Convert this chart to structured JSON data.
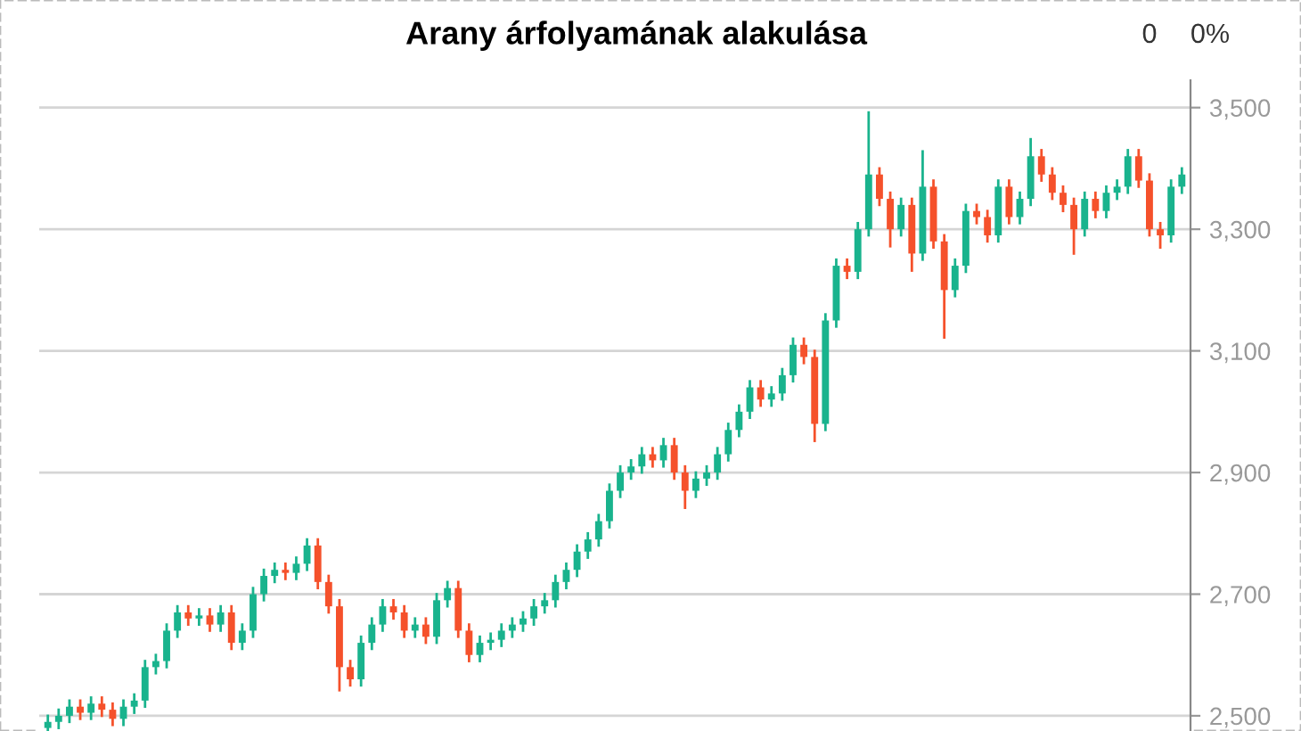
{
  "chart_data": {
    "type": "candlestick",
    "title": "Arany árfolyamának alakulása",
    "annotations": [
      "0",
      "0%"
    ],
    "categories": [
      null,
      null,
      null,
      null,
      null,
      null,
      null,
      null,
      null,
      null,
      null,
      null,
      null,
      null,
      null,
      null,
      null,
      null,
      null,
      null,
      null,
      null,
      null,
      null,
      null,
      null,
      null,
      null,
      null,
      null,
      null,
      null,
      null,
      null,
      null,
      null,
      null,
      null,
      null,
      null,
      null,
      null,
      null,
      null,
      null,
      null,
      null,
      null,
      null,
      null,
      null,
      null,
      null,
      null,
      null,
      null,
      null,
      null,
      null,
      null,
      null,
      null,
      null,
      null,
      null,
      null,
      null,
      null,
      null,
      null,
      null,
      null,
      null,
      null,
      null,
      null,
      null,
      null,
      null,
      null,
      null,
      null,
      null,
      null,
      null,
      null,
      null,
      null,
      null,
      null,
      null,
      null,
      null,
      null,
      null,
      null,
      null,
      null,
      null,
      null,
      null,
      null,
      null,
      null,
      null,
      null
    ],
    "ohlc": [
      [
        2480,
        2502,
        2468,
        2490
      ],
      [
        2490,
        2512,
        2478,
        2500
      ],
      [
        2500,
        2527,
        2488,
        2515
      ],
      [
        2515,
        2527,
        2493,
        2505
      ],
      [
        2505,
        2532,
        2493,
        2520
      ],
      [
        2520,
        2532,
        2498,
        2510
      ],
      [
        2510,
        2522,
        2483,
        2495
      ],
      [
        2495,
        2527,
        2483,
        2515
      ],
      [
        2515,
        2537,
        2503,
        2525
      ],
      [
        2525,
        2592,
        2513,
        2580
      ],
      [
        2580,
        2602,
        2568,
        2590
      ],
      [
        2590,
        2652,
        2578,
        2640
      ],
      [
        2640,
        2682,
        2628,
        2670
      ],
      [
        2670,
        2682,
        2648,
        2660
      ],
      [
        2660,
        2677,
        2648,
        2665
      ],
      [
        2665,
        2677,
        2638,
        2650
      ],
      [
        2650,
        2682,
        2638,
        2670
      ],
      [
        2670,
        2682,
        2608,
        2620
      ],
      [
        2620,
        2652,
        2608,
        2640
      ],
      [
        2640,
        2712,
        2628,
        2700
      ],
      [
        2700,
        2742,
        2688,
        2730
      ],
      [
        2730,
        2752,
        2718,
        2740
      ],
      [
        2740,
        2752,
        2723,
        2735
      ],
      [
        2735,
        2762,
        2723,
        2750
      ],
      [
        2750,
        2792,
        2738,
        2780
      ],
      [
        2780,
        2792,
        2708,
        2720
      ],
      [
        2720,
        2732,
        2668,
        2680
      ],
      [
        2680,
        2692,
        2540,
        2580
      ],
      [
        2580,
        2592,
        2548,
        2560
      ],
      [
        2560,
        2632,
        2548,
        2620
      ],
      [
        2620,
        2662,
        2608,
        2650
      ],
      [
        2650,
        2692,
        2638,
        2680
      ],
      [
        2680,
        2692,
        2658,
        2670
      ],
      [
        2670,
        2682,
        2628,
        2640
      ],
      [
        2640,
        2662,
        2628,
        2650
      ],
      [
        2650,
        2662,
        2618,
        2630
      ],
      [
        2630,
        2702,
        2618,
        2690
      ],
      [
        2690,
        2722,
        2678,
        2710
      ],
      [
        2710,
        2722,
        2628,
        2640
      ],
      [
        2640,
        2652,
        2588,
        2600
      ],
      [
        2600,
        2632,
        2588,
        2620
      ],
      [
        2620,
        2637,
        2608,
        2625
      ],
      [
        2625,
        2652,
        2613,
        2640
      ],
      [
        2640,
        2662,
        2628,
        2650
      ],
      [
        2650,
        2672,
        2638,
        2660
      ],
      [
        2660,
        2692,
        2648,
        2680
      ],
      [
        2680,
        2702,
        2668,
        2690
      ],
      [
        2690,
        2732,
        2678,
        2720
      ],
      [
        2720,
        2752,
        2708,
        2740
      ],
      [
        2740,
        2782,
        2728,
        2770
      ],
      [
        2770,
        2802,
        2758,
        2790
      ],
      [
        2790,
        2832,
        2778,
        2820
      ],
      [
        2820,
        2882,
        2808,
        2870
      ],
      [
        2870,
        2912,
        2858,
        2900
      ],
      [
        2900,
        2922,
        2888,
        2910
      ],
      [
        2910,
        2942,
        2898,
        2930
      ],
      [
        2930,
        2942,
        2908,
        2920
      ],
      [
        2920,
        2957,
        2908,
        2945
      ],
      [
        2945,
        2957,
        2888,
        2900
      ],
      [
        2900,
        2912,
        2840,
        2870
      ],
      [
        2870,
        2902,
        2858,
        2890
      ],
      [
        2890,
        2912,
        2878,
        2900
      ],
      [
        2900,
        2942,
        2888,
        2930
      ],
      [
        2930,
        2982,
        2918,
        2970
      ],
      [
        2970,
        3012,
        2958,
        3000
      ],
      [
        3000,
        3052,
        2988,
        3040
      ],
      [
        3040,
        3052,
        3008,
        3020
      ],
      [
        3020,
        3042,
        3008,
        3030
      ],
      [
        3030,
        3072,
        3018,
        3060
      ],
      [
        3060,
        3122,
        3048,
        3110
      ],
      [
        3110,
        3122,
        3078,
        3090
      ],
      [
        3090,
        3102,
        2950,
        2980
      ],
      [
        2980,
        3162,
        2968,
        3150
      ],
      [
        3150,
        3252,
        3138,
        3240
      ],
      [
        3240,
        3252,
        3218,
        3230
      ],
      [
        3230,
        3312,
        3218,
        3300
      ],
      [
        3300,
        3494,
        3288,
        3390
      ],
      [
        3390,
        3402,
        3338,
        3350
      ],
      [
        3350,
        3362,
        3270,
        3300
      ],
      [
        3300,
        3352,
        3288,
        3340
      ],
      [
        3340,
        3352,
        3230,
        3260
      ],
      [
        3260,
        3430,
        3248,
        3370
      ],
      [
        3370,
        3382,
        3268,
        3280
      ],
      [
        3280,
        3292,
        3120,
        3200
      ],
      [
        3200,
        3252,
        3188,
        3240
      ],
      [
        3240,
        3342,
        3228,
        3330
      ],
      [
        3330,
        3342,
        3308,
        3320
      ],
      [
        3320,
        3332,
        3278,
        3290
      ],
      [
        3290,
        3382,
        3278,
        3370
      ],
      [
        3370,
        3382,
        3308,
        3320
      ],
      [
        3320,
        3362,
        3308,
        3350
      ],
      [
        3350,
        3450,
        3338,
        3420
      ],
      [
        3420,
        3432,
        3378,
        3390
      ],
      [
        3390,
        3402,
        3348,
        3360
      ],
      [
        3360,
        3372,
        3328,
        3340
      ],
      [
        3340,
        3352,
        3258,
        3300
      ],
      [
        3300,
        3362,
        3288,
        3350
      ],
      [
        3350,
        3362,
        3318,
        3330
      ],
      [
        3330,
        3372,
        3318,
        3360
      ],
      [
        3360,
        3382,
        3348,
        3370
      ],
      [
        3370,
        3432,
        3358,
        3420
      ],
      [
        3420,
        3432,
        3368,
        3380
      ],
      [
        3380,
        3392,
        3288,
        3300
      ],
      [
        3300,
        3312,
        3268,
        3290
      ],
      [
        3290,
        3382,
        3278,
        3370
      ],
      [
        3370,
        3402,
        3358,
        3390
      ]
    ],
    "colors": [
      "#19b38d",
      "#19b38d",
      "#19b38d",
      "#f5512b",
      "#19b38d",
      "#f5512b",
      "#f5512b",
      "#19b38d",
      "#19b38d",
      "#19b38d",
      "#19b38d",
      "#19b38d",
      "#19b38d",
      "#f5512b",
      "#19b38d",
      "#f5512b",
      "#19b38d",
      "#f5512b",
      "#19b38d",
      "#19b38d",
      "#19b38d",
      "#19b38d",
      "#f5512b",
      "#19b38d",
      "#19b38d",
      "#f5512b",
      "#f5512b",
      "#f5512b",
      "#f5512b",
      "#19b38d",
      "#19b38d",
      "#19b38d",
      "#f5512b",
      "#f5512b",
      "#19b38d",
      "#f5512b",
      "#19b38d",
      "#19b38d",
      "#f5512b",
      "#f5512b",
      "#19b38d",
      "#19b38d",
      "#19b38d",
      "#19b38d",
      "#19b38d",
      "#19b38d",
      "#19b38d",
      "#19b38d",
      "#19b38d",
      "#19b38d",
      "#19b38d",
      "#19b38d",
      "#19b38d",
      "#19b38d",
      "#19b38d",
      "#19b38d",
      "#f5512b",
      "#19b38d",
      "#f5512b",
      "#f5512b",
      "#19b38d",
      "#19b38d",
      "#19b38d",
      "#19b38d",
      "#19b38d",
      "#19b38d",
      "#f5512b",
      "#19b38d",
      "#19b38d",
      "#19b38d",
      "#f5512b",
      "#f5512b",
      "#19b38d",
      "#19b38d",
      "#f5512b",
      "#19b38d",
      "#19b38d",
      "#f5512b",
      "#f5512b",
      "#19b38d",
      "#f5512b",
      "#19b38d",
      "#f5512b",
      "#f5512b",
      "#19b38d",
      "#19b38d",
      "#f5512b",
      "#f5512b",
      "#19b38d",
      "#f5512b",
      "#19b38d",
      "#19b38d",
      "#f5512b",
      "#f5512b",
      "#f5512b",
      "#f5512b",
      "#19b38d",
      "#f5512b",
      "#19b38d",
      "#19b38d",
      "#19b38d",
      "#f5512b",
      "#f5512b",
      "#f5512b",
      "#19b38d",
      "#19b38d"
    ],
    "ylim": [
      2475,
      3545
    ],
    "yticks": [
      {
        "value": 2500,
        "label": "2,500"
      },
      {
        "value": 2700,
        "label": "2,700"
      },
      {
        "value": 2900,
        "label": "2,900"
      },
      {
        "value": 3100,
        "label": "3,100"
      },
      {
        "value": 3300,
        "label": "3,300"
      },
      {
        "value": 3500,
        "label": "3,500"
      }
    ],
    "grid": "y",
    "tick_labels": "y"
  }
}
